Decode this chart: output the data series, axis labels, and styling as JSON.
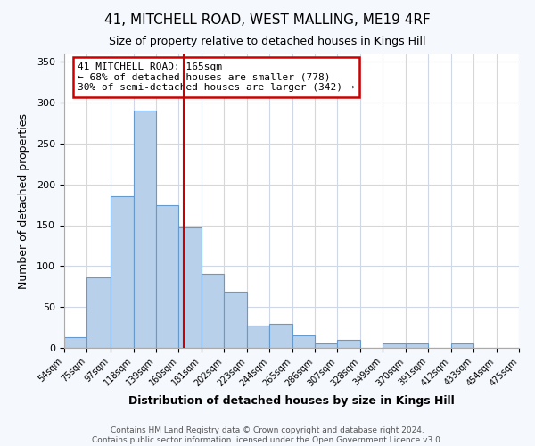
{
  "title": "41, MITCHELL ROAD, WEST MALLING, ME19 4RF",
  "subtitle": "Size of property relative to detached houses in Kings Hill",
  "xlabel": "Distribution of detached houses by size in Kings Hill",
  "ylabel": "Number of detached properties",
  "bar_values": [
    13,
    86,
    185,
    290,
    175,
    147,
    91,
    69,
    27,
    30,
    15,
    6,
    10,
    0,
    5,
    6,
    0,
    6,
    0,
    0
  ],
  "bin_edges": [
    54,
    75,
    97,
    118,
    139,
    160,
    181,
    202,
    223,
    244,
    265,
    286,
    307,
    328,
    349,
    370,
    391,
    412,
    433,
    454,
    475
  ],
  "bar_color": "#b8d0ea",
  "bar_edge_color": "#6699cc",
  "property_size": 165,
  "vline_color": "#cc0000",
  "ylim": [
    0,
    360
  ],
  "yticks": [
    0,
    50,
    100,
    150,
    200,
    250,
    300,
    350
  ],
  "annotation_text": "41 MITCHELL ROAD: 165sqm\n← 68% of detached houses are smaller (778)\n30% of semi-detached houses are larger (342) →",
  "annotation_box_color": "#ffffff",
  "annotation_box_edge_color": "#cc0000",
  "footer_line1": "Contains HM Land Registry data © Crown copyright and database right 2024.",
  "footer_line2": "Contains public sector information licensed under the Open Government Licence v3.0.",
  "fig_background_color": "#f5f8fd",
  "axes_background_color": "#ffffff",
  "grid_color": "#d0d8e8"
}
